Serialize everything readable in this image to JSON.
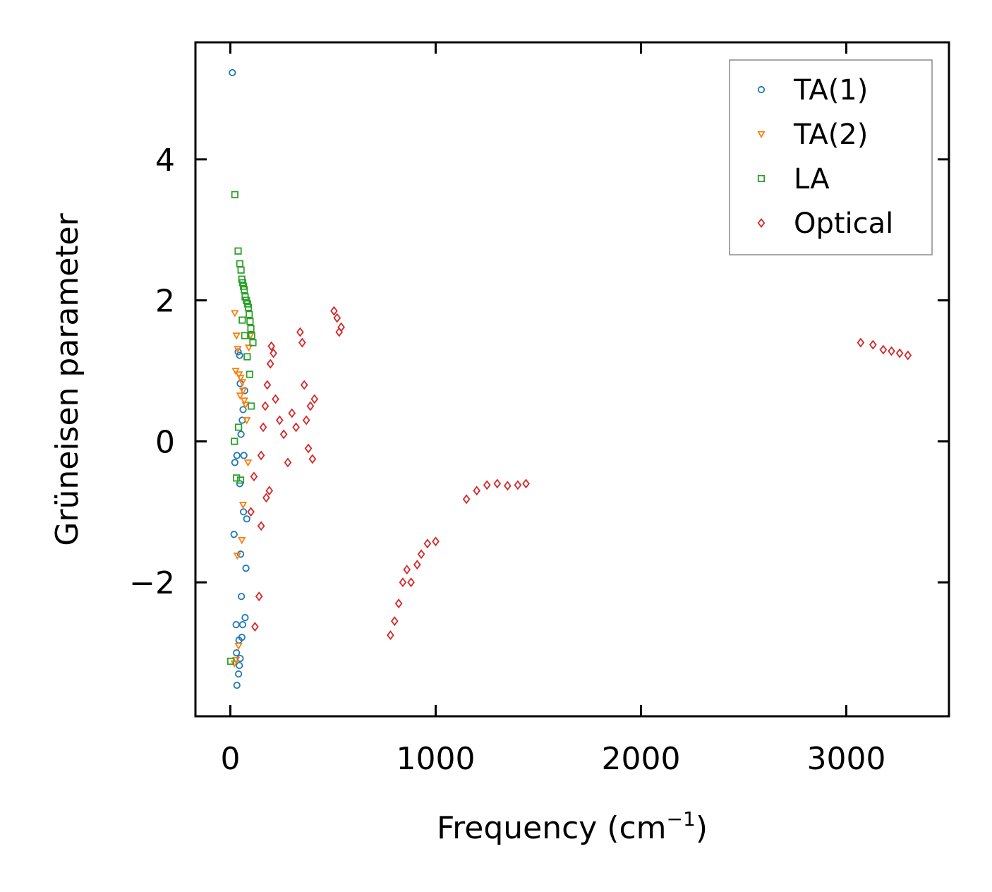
{
  "chart_data": {
    "type": "scatter",
    "xlabel": "Frequency (cm",
    "xlabel_sup": "−1",
    "xlabel_close": ")",
    "ylabel": "Grüneisen parameter",
    "xlim": [
      -170,
      3500
    ],
    "ylim": [
      -3.9,
      5.66
    ],
    "xticks": [
      0,
      1000,
      2000,
      3000
    ],
    "xtick_labels": [
      "0",
      "1000",
      "2000",
      "3000"
    ],
    "yticks": [
      -2,
      0,
      2,
      4
    ],
    "ytick_labels": [
      "−2",
      "0",
      "2",
      "4"
    ],
    "legend_position": "top-right",
    "series": [
      {
        "name": "TA(1)",
        "marker": "circle",
        "color": "#1f77b4",
        "points": [
          [
            10,
            5.23
          ],
          [
            32,
            -3.46
          ],
          [
            40,
            -3.3
          ],
          [
            44,
            -3.18
          ],
          [
            48,
            -3.08
          ],
          [
            30,
            -3.0
          ],
          [
            28,
            -2.6
          ],
          [
            42,
            -2.82
          ],
          [
            56,
            -2.78
          ],
          [
            60,
            -2.6
          ],
          [
            18,
            -1.32
          ],
          [
            46,
            -0.6
          ],
          [
            22,
            -0.3
          ],
          [
            32,
            -0.2
          ],
          [
            52,
            0.1
          ],
          [
            58,
            0.3
          ],
          [
            62,
            0.45
          ],
          [
            70,
            0.72
          ],
          [
            48,
            0.82
          ],
          [
            45,
            1.22
          ],
          [
            38,
            1.27
          ],
          [
            64,
            -1.0
          ],
          [
            50,
            -1.6
          ],
          [
            76,
            -1.8
          ],
          [
            80,
            -1.1
          ],
          [
            66,
            -0.2
          ],
          [
            54,
            -2.2
          ],
          [
            72,
            -2.5
          ]
        ]
      },
      {
        "name": "TA(2)",
        "marker": "triangle-down",
        "color": "#ff7f0e",
        "points": [
          [
            22,
            1.82
          ],
          [
            30,
            1.5
          ],
          [
            36,
            1.31
          ],
          [
            26,
            1.0
          ],
          [
            42,
            0.95
          ],
          [
            50,
            0.9
          ],
          [
            58,
            0.84
          ],
          [
            62,
            0.72
          ],
          [
            48,
            0.65
          ],
          [
            68,
            0.58
          ],
          [
            74,
            0.52
          ],
          [
            90,
            1.33
          ],
          [
            98,
            1.5
          ],
          [
            34,
            -1.62
          ],
          [
            40,
            -2.9
          ],
          [
            28,
            -3.1
          ],
          [
            20,
            -3.15
          ],
          [
            56,
            -1.4
          ],
          [
            62,
            -0.9
          ],
          [
            80,
            0.3
          ],
          [
            86,
            -0.3
          ]
        ]
      },
      {
        "name": "LA",
        "marker": "square",
        "color": "#2ca02c",
        "points": [
          [
            22,
            3.5
          ],
          [
            38,
            2.7
          ],
          [
            46,
            2.52
          ],
          [
            52,
            2.43
          ],
          [
            56,
            2.3
          ],
          [
            60,
            2.25
          ],
          [
            64,
            2.2
          ],
          [
            68,
            2.15
          ],
          [
            72,
            2.05
          ],
          [
            78,
            2.0
          ],
          [
            84,
            1.95
          ],
          [
            88,
            1.9
          ],
          [
            92,
            1.8
          ],
          [
            96,
            1.7
          ],
          [
            100,
            1.6
          ],
          [
            104,
            1.5
          ],
          [
            110,
            1.4
          ],
          [
            58,
            1.72
          ],
          [
            70,
            1.5
          ],
          [
            40,
            0.2
          ],
          [
            20,
            0.0
          ],
          [
            30,
            -0.52
          ],
          [
            50,
            -0.55
          ],
          [
            82,
            1.2
          ],
          [
            94,
            0.95
          ],
          [
            102,
            0.5
          ],
          [
            2,
            -3.12
          ]
        ]
      },
      {
        "name": "Optical",
        "marker": "diamond",
        "color": "#d62728",
        "points": [
          [
            100,
            -1.0
          ],
          [
            115,
            -0.5
          ],
          [
            140,
            -2.2
          ],
          [
            120,
            -2.63
          ],
          [
            150,
            -1.2
          ],
          [
            175,
            -0.8
          ],
          [
            190,
            -0.7
          ],
          [
            160,
            0.2
          ],
          [
            150,
            -0.2
          ],
          [
            170,
            0.5
          ],
          [
            180,
            0.8
          ],
          [
            195,
            1.1
          ],
          [
            200,
            1.35
          ],
          [
            210,
            1.25
          ],
          [
            220,
            0.6
          ],
          [
            240,
            0.3
          ],
          [
            260,
            0.1
          ],
          [
            280,
            -0.3
          ],
          [
            300,
            0.4
          ],
          [
            320,
            0.2
          ],
          [
            340,
            1.55
          ],
          [
            350,
            1.4
          ],
          [
            360,
            0.8
          ],
          [
            370,
            0.3
          ],
          [
            380,
            -0.1
          ],
          [
            390,
            0.5
          ],
          [
            410,
            0.6
          ],
          [
            400,
            -0.25
          ],
          [
            505,
            1.85
          ],
          [
            520,
            1.75
          ],
          [
            540,
            1.62
          ],
          [
            530,
            1.55
          ],
          [
            780,
            -2.75
          ],
          [
            800,
            -2.55
          ],
          [
            820,
            -2.3
          ],
          [
            840,
            -2.0
          ],
          [
            860,
            -1.82
          ],
          [
            880,
            -2.0
          ],
          [
            910,
            -1.75
          ],
          [
            930,
            -1.6
          ],
          [
            960,
            -1.45
          ],
          [
            1000,
            -1.42
          ],
          [
            1150,
            -0.82
          ],
          [
            1200,
            -0.7
          ],
          [
            1250,
            -0.62
          ],
          [
            1300,
            -0.6
          ],
          [
            1350,
            -0.63
          ],
          [
            1400,
            -0.62
          ],
          [
            1440,
            -0.6
          ],
          [
            3070,
            1.4
          ],
          [
            3130,
            1.37
          ],
          [
            3180,
            1.3
          ],
          [
            3220,
            1.28
          ],
          [
            3260,
            1.25
          ],
          [
            3300,
            1.22
          ]
        ]
      }
    ]
  }
}
